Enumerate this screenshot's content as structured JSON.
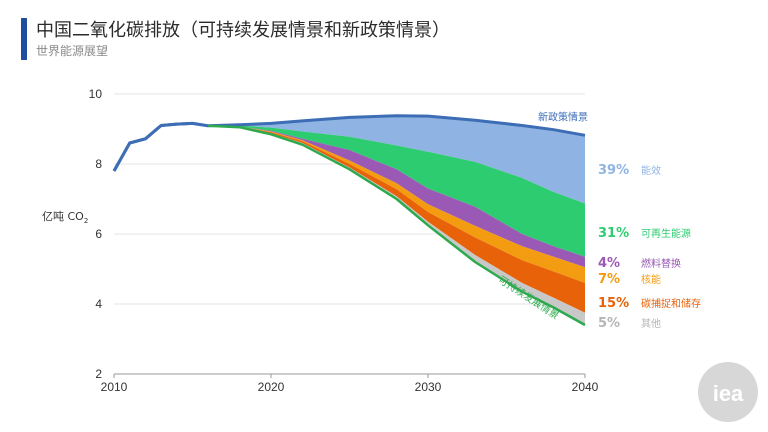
{
  "title": "中国二氧化碳排放（可持续发展情景和新政策情景）",
  "subtitle": "世界能源展望",
  "logo_text": "iea",
  "colors": {
    "accent": "#1f4e9e",
    "stated_policies": "#3d6db5",
    "sustainable": "#2eaa4e",
    "efficiency": "#8fb4e3",
    "renewables": "#2ecc71",
    "fuel_switching": "#9b59b6",
    "nuclear": "#f39c12",
    "ccus": "#e8620a",
    "other": "#c8c8c8"
  },
  "chart_data": {
    "type": "area",
    "xlim": [
      2010,
      2040
    ],
    "ylim": [
      2,
      10
    ],
    "x_ticks": [
      "2010",
      "2020",
      "2030",
      "2040"
    ],
    "y_ticks": [
      "2",
      "4",
      "6",
      "8",
      "10"
    ],
    "ylabel": "亿吨 CO",
    "ylabel_sub": "2",
    "years": [
      2010,
      2011,
      2012,
      2013,
      2014,
      2015,
      2016,
      2018,
      2020,
      2022,
      2025,
      2028,
      2030,
      2033,
      2036,
      2038,
      2040
    ],
    "series": [
      {
        "name": "新政策情景",
        "values": [
          7.8,
          8.6,
          8.72,
          9.1,
          9.14,
          9.16,
          9.09,
          9.12,
          9.16,
          9.23,
          9.33,
          9.38,
          9.37,
          9.25,
          9.1,
          8.98,
          8.82
        ]
      },
      {
        "name": "可持续发展情景",
        "values": [
          7.8,
          8.6,
          8.72,
          9.1,
          9.14,
          9.16,
          9.09,
          9.05,
          8.85,
          8.55,
          7.85,
          7.0,
          6.25,
          5.2,
          4.35,
          3.9,
          3.4
        ]
      }
    ],
    "wedges": [
      {
        "pct": "39%",
        "label": "能效",
        "boundaries": [
          9.09,
          9.1,
          9.04,
          8.93,
          8.78,
          8.53,
          8.35,
          8.06,
          7.6,
          7.2,
          6.87
        ]
      },
      {
        "pct": "31%",
        "label": "可再生能源",
        "boundaries": [
          9.09,
          9.07,
          8.95,
          8.72,
          8.4,
          7.85,
          7.3,
          6.78,
          6.0,
          5.65,
          5.35
        ]
      },
      {
        "pct": "4%",
        "label": "燃料替换",
        "boundaries": [
          9.09,
          9.07,
          8.93,
          8.68,
          8.1,
          7.45,
          6.85,
          6.23,
          5.65,
          5.35,
          5.05
        ]
      },
      {
        "pct": "7%",
        "label": "核能",
        "boundaries": [
          9.09,
          9.06,
          8.91,
          8.65,
          8.0,
          7.28,
          6.63,
          5.9,
          5.25,
          4.93,
          4.6
        ]
      },
      {
        "pct": "15%",
        "label": "碳捕捉和储存",
        "boundaries": [
          9.09,
          9.05,
          8.88,
          8.6,
          7.9,
          7.08,
          6.35,
          5.4,
          4.6,
          4.18,
          3.75
        ]
      },
      {
        "pct": "5%",
        "label": "其他",
        "boundaries": [
          9.09,
          9.05,
          8.85,
          8.55,
          7.85,
          7.0,
          6.25,
          5.2,
          4.35,
          3.9,
          3.4
        ]
      }
    ],
    "wedge_years": [
      2016,
      2018,
      2020,
      2022,
      2025,
      2028,
      2030,
      2033,
      2036,
      2038,
      2040
    ]
  }
}
